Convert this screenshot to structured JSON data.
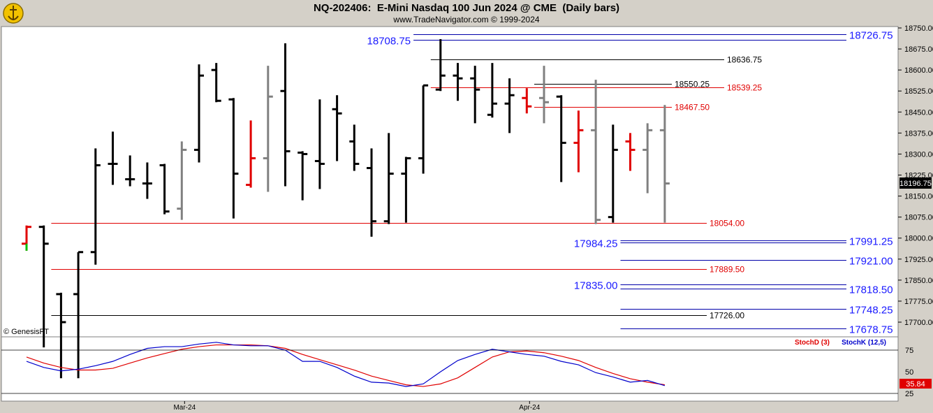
{
  "header": {
    "title": "NQ-202406:  E-Mini Nasdaq 100 Jun 2024 @ CME  (Daily bars)",
    "subtitle": "www.TradeNavigator.com © 1999-2024",
    "logo_icon": "yellow-navigator-logo-icon"
  },
  "copyright": "© GenesisFT",
  "colors": {
    "background": "#ffffff",
    "panel": "#d4d0c8",
    "up_bar": "#000000",
    "down_bar_red": "#e00000",
    "gray_bar": "#808080",
    "level_blue": "#0000aa",
    "level_red": "#e00000",
    "level_black": "#000000",
    "label_blue": "#1a1aff",
    "last_price_box": "#000000"
  },
  "chart_data": [
    {
      "type": "ohlc",
      "title": "NQ-202406:  E-Mini Nasdaq 100 Jun 2024 @ CME  (Daily bars)",
      "ylim": [
        17640,
        18765
      ],
      "y_ticks": [
        "18750.00",
        "18675.00",
        "18600.00",
        "18525.00",
        "18450.00",
        "18375.00",
        "18300.00",
        "18225.00",
        "18150.00",
        "18075.00",
        "18000.00",
        "17925.00",
        "17850.00",
        "17775.00",
        "17700.00"
      ],
      "x_ticks": [
        {
          "label": "Mar-24",
          "bar_index": 9
        },
        {
          "label": "Apr-24",
          "bar_index": 29
        }
      ],
      "last_price": "18196.75",
      "bars": [
        {
          "o": 17980,
          "h": 18045,
          "l": 17955,
          "c": 18040,
          "color": "red"
        },
        {
          "o": 18040,
          "h": 18045,
          "l": 17610,
          "c": 17980,
          "color": "black"
        },
        {
          "o": 17800,
          "h": 17805,
          "l": 17500,
          "c": 17700,
          "color": "black"
        },
        {
          "o": 17800,
          "h": 17950,
          "l": 17500,
          "c": 17950,
          "color": "black"
        },
        {
          "o": 17950,
          "h": 18320,
          "l": 17905,
          "c": 18260,
          "color": "black"
        },
        {
          "o": 18265,
          "h": 18380,
          "l": 18190,
          "c": 18265,
          "color": "black"
        },
        {
          "o": 18210,
          "h": 18295,
          "l": 18185,
          "c": 18210,
          "color": "black"
        },
        {
          "o": 18195,
          "h": 18270,
          "l": 18140,
          "c": 18195,
          "color": "black"
        },
        {
          "o": 18260,
          "h": 18265,
          "l": 18085,
          "c": 18095,
          "color": "black"
        },
        {
          "o": 18105,
          "h": 18345,
          "l": 18065,
          "c": 18315,
          "color": "gray"
        },
        {
          "o": 18315,
          "h": 18620,
          "l": 18270,
          "c": 18580,
          "color": "black"
        },
        {
          "o": 18600,
          "h": 18625,
          "l": 18485,
          "c": 18490,
          "color": "black"
        },
        {
          "o": 18495,
          "h": 18500,
          "l": 18070,
          "c": 18230,
          "color": "black"
        },
        {
          "o": 18190,
          "h": 18420,
          "l": 18180,
          "c": 18285,
          "color": "red"
        },
        {
          "o": 18285,
          "h": 18615,
          "l": 18165,
          "c": 18505,
          "color": "gray"
        },
        {
          "o": 18525,
          "h": 18695,
          "l": 18185,
          "c": 18310,
          "color": "black"
        },
        {
          "o": 18305,
          "h": 18310,
          "l": 18135,
          "c": 18300,
          "color": "black"
        },
        {
          "o": 18275,
          "h": 18495,
          "l": 18175,
          "c": 18265,
          "color": "black"
        },
        {
          "o": 18460,
          "h": 18510,
          "l": 18275,
          "c": 18445,
          "color": "black"
        },
        {
          "o": 18345,
          "h": 18405,
          "l": 18240,
          "c": 18265,
          "color": "black"
        },
        {
          "o": 18250,
          "h": 18320,
          "l": 18005,
          "c": 18060,
          "color": "black"
        },
        {
          "o": 18060,
          "h": 18375,
          "l": 18050,
          "c": 18230,
          "color": "black"
        },
        {
          "o": 18230,
          "h": 18290,
          "l": 18055,
          "c": 18285,
          "color": "black"
        },
        {
          "o": 18285,
          "h": 18545,
          "l": 18230,
          "c": 18545,
          "color": "black"
        },
        {
          "o": 18530,
          "h": 18710,
          "l": 18525,
          "c": 18580,
          "color": "black"
        },
        {
          "o": 18580,
          "h": 18625,
          "l": 18490,
          "c": 18570,
          "color": "black"
        },
        {
          "o": 18570,
          "h": 18615,
          "l": 18410,
          "c": 18530,
          "color": "black"
        },
        {
          "o": 18440,
          "h": 18625,
          "l": 18430,
          "c": 18480,
          "color": "black"
        },
        {
          "o": 18480,
          "h": 18570,
          "l": 18375,
          "c": 18510,
          "color": "black"
        },
        {
          "o": 18500,
          "h": 18535,
          "l": 18445,
          "c": 18470,
          "color": "red"
        },
        {
          "o": 18500,
          "h": 18615,
          "l": 18410,
          "c": 18485,
          "color": "gray"
        },
        {
          "o": 18505,
          "h": 18510,
          "l": 18200,
          "c": 18340,
          "color": "black"
        },
        {
          "o": 18340,
          "h": 18455,
          "l": 18235,
          "c": 18385,
          "color": "red"
        },
        {
          "o": 18385,
          "h": 18565,
          "l": 18050,
          "c": 18065,
          "color": "gray"
        },
        {
          "o": 18075,
          "h": 18405,
          "l": 18055,
          "c": 18315,
          "color": "black"
        },
        {
          "o": 18345,
          "h": 18375,
          "l": 18240,
          "c": 18315,
          "color": "red"
        },
        {
          "o": 18315,
          "h": 18410,
          "l": 18160,
          "c": 18385,
          "color": "gray"
        },
        {
          "o": 18385,
          "h": 18475,
          "l": 18055,
          "c": 18195,
          "color": "gray"
        }
      ]
    },
    {
      "type": "line",
      "title": "",
      "ylim": [
        20,
        87
      ],
      "y_ticks": [
        "75",
        "50",
        "25"
      ],
      "legend": [
        {
          "name": "StochD (3)",
          "color": "#e00000"
        },
        {
          "name": "StochK (12,5)",
          "color": "#0000cc"
        }
      ],
      "last_value": "35.84",
      "series": [
        {
          "name": "StochD (3)",
          "x_start": 0,
          "values": [
            67,
            60,
            55,
            52,
            52,
            54,
            60,
            66,
            71,
            76,
            79,
            81,
            81,
            81,
            80,
            77,
            70,
            64,
            58,
            52,
            45,
            40,
            35,
            33,
            36,
            43,
            55,
            67,
            73,
            74,
            72,
            68,
            63,
            55,
            48,
            42,
            38,
            35
          ]
        },
        {
          "name": "StochK (12,5)",
          "x_start": 0,
          "values": [
            62,
            55,
            51,
            53,
            57,
            62,
            70,
            77,
            79,
            79,
            82,
            84,
            81,
            80,
            80,
            75,
            62,
            62,
            55,
            45,
            38,
            37,
            33,
            36,
            50,
            63,
            70,
            76,
            73,
            70,
            68,
            62,
            58,
            49,
            44,
            38,
            40,
            34
          ]
        }
      ]
    }
  ],
  "levels": [
    {
      "price": 18726.75,
      "label": "18726.75",
      "color": "blue",
      "x_from_bar": 23,
      "label_side": "right",
      "big": true
    },
    {
      "price": 18708.75,
      "label": "18708.75",
      "color": "blue",
      "x_from_bar": 23,
      "label_side": "left",
      "big": true
    },
    {
      "price": 18636.75,
      "label": "18636.75",
      "color": "black",
      "x_from_bar": 24,
      "label_side": "mid",
      "big": false
    },
    {
      "price": 18550.25,
      "label": "18550.25",
      "color": "black",
      "x_from_bar": 30,
      "label_side": "mid2",
      "big": false
    },
    {
      "price": 18539.25,
      "label": "18539.25",
      "color": "red",
      "x_from_bar": 24,
      "label_side": "mid",
      "big": false
    },
    {
      "price": 18467.5,
      "label": "18467.50",
      "color": "red",
      "x_from_bar": 30,
      "label_side": "mid2",
      "big": false
    },
    {
      "price": 18054.0,
      "label": "18054.00",
      "color": "red",
      "x_from_bar": 2,
      "label_side": "mid",
      "big": false
    },
    {
      "price": 17991.25,
      "label": "17991.25",
      "color": "blue",
      "x_from_bar": 35,
      "label_side": "right",
      "big": true
    },
    {
      "price": 17984.25,
      "label": "17984.25",
      "color": "blue",
      "x_from_bar": 35,
      "label_side": "left",
      "big": true
    },
    {
      "price": 17921.0,
      "label": "17921.00",
      "color": "blue",
      "x_from_bar": 35,
      "label_side": "right",
      "big": true
    },
    {
      "price": 17889.5,
      "label": "17889.50",
      "color": "red",
      "x_from_bar": 2,
      "label_side": "mid",
      "big": false
    },
    {
      "price": 17835.0,
      "label": "17835.00",
      "color": "blue",
      "x_from_bar": 35,
      "label_side": "left",
      "big": true
    },
    {
      "price": 17818.5,
      "label": "17818.50",
      "color": "blue",
      "x_from_bar": 35,
      "label_side": "right",
      "big": true
    },
    {
      "price": 17748.25,
      "label": "17748.25",
      "color": "blue",
      "x_from_bar": 35,
      "label_side": "right",
      "big": true
    },
    {
      "price": 17726.0,
      "label": "17726.00",
      "color": "black",
      "x_from_bar": 2,
      "label_side": "mid",
      "big": false
    },
    {
      "price": 17678.75,
      "label": "17678.75",
      "color": "blue",
      "x_from_bar": 35,
      "label_side": "right",
      "big": true
    }
  ]
}
